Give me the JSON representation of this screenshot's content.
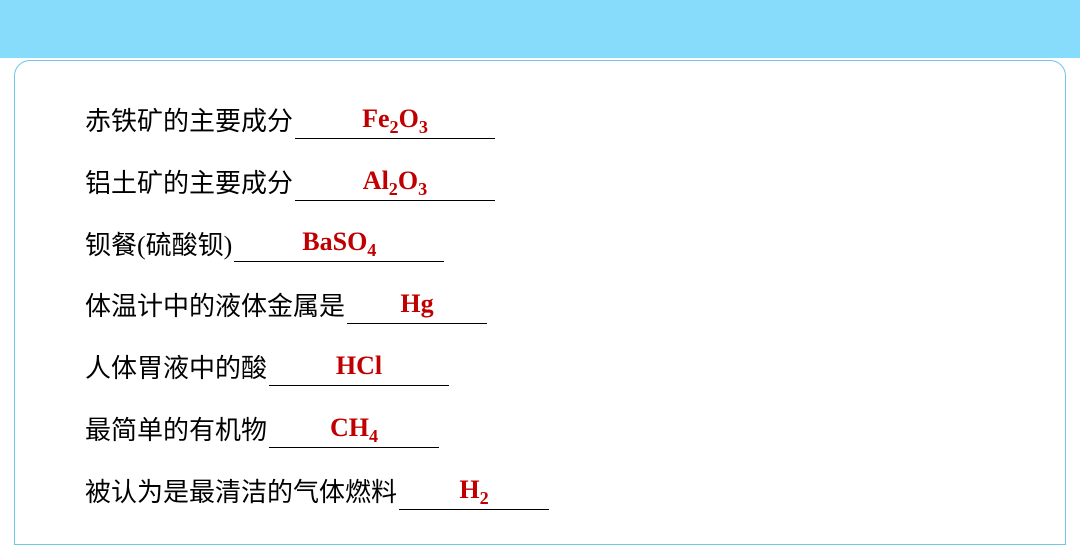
{
  "style": {
    "topbar_color": "#87dbfb",
    "card_border_color": "#6fc8e8",
    "card_bg": "#ffffff",
    "text_color": "#000000",
    "answer_color": "#c00000",
    "prompt_fontsize": 26,
    "answer_fontsize": 26,
    "prompt_font": "SimSun",
    "answer_font": "Times New Roman",
    "answer_weight": "bold",
    "row_gap": 28,
    "card_radius": 16,
    "underline_min_width": 180
  },
  "items": [
    {
      "prompt": "赤铁矿的主要成分",
      "formula": [
        [
          "t",
          "Fe"
        ],
        [
          "s",
          "2"
        ],
        [
          "t",
          "O"
        ],
        [
          "s",
          "3"
        ]
      ],
      "blank_width": 200
    },
    {
      "prompt": "铝土矿的主要成分",
      "formula": [
        [
          "t",
          "Al"
        ],
        [
          "s",
          "2"
        ],
        [
          "t",
          "O"
        ],
        [
          "s",
          "3"
        ]
      ],
      "blank_width": 200
    },
    {
      "prompt": "钡餐(硫酸钡)",
      "formula": [
        [
          "t",
          "BaSO"
        ],
        [
          "s",
          "4"
        ]
      ],
      "blank_width": 210
    },
    {
      "prompt": "体温计中的液体金属是",
      "formula": [
        [
          "t",
          "Hg"
        ]
      ],
      "blank_width": 140
    },
    {
      "prompt": "人体胃液中的酸",
      "formula": [
        [
          "t",
          "HCl"
        ]
      ],
      "blank_width": 180
    },
    {
      "prompt": "最简单的有机物",
      "formula": [
        [
          "t",
          "CH"
        ],
        [
          "s",
          "4"
        ]
      ],
      "blank_width": 170
    },
    {
      "prompt": "被认为是最清洁的气体燃料",
      "formula": [
        [
          "t",
          "H"
        ],
        [
          "s",
          "2"
        ]
      ],
      "blank_width": 150
    }
  ]
}
